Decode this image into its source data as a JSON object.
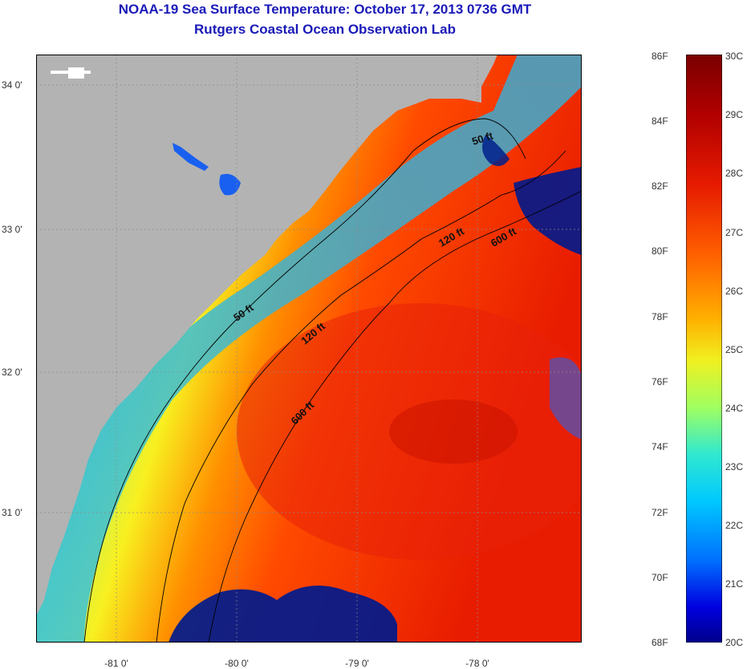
{
  "header": {
    "title": "NOAA-19 Sea Surface Temperature:  October 17, 2013 0736 GMT",
    "subtitle": "Rutgers Coastal Ocean Observation Lab"
  },
  "map": {
    "lat_labels": [
      "34 0'",
      "33 0'",
      "32 0'",
      "31 0'"
    ],
    "lon_labels": [
      "-81 0'",
      "-80 0'",
      "-79 0'",
      "-78 0'"
    ],
    "contours": [
      "50 ft",
      "50 ft",
      "120 ft",
      "120 ft",
      "600 ft",
      "600 ft"
    ]
  },
  "colorbar": {
    "fahrenheit": [
      "86F",
      "84F",
      "82F",
      "80F",
      "78F",
      "76F",
      "74F",
      "72F",
      "70F",
      "68F"
    ],
    "celsius": [
      "30C",
      "29C",
      "28C",
      "27C",
      "26C",
      "25C",
      "24C",
      "23C",
      "22C",
      "21C",
      "20C"
    ],
    "colors": [
      "#7a0000",
      "#b00000",
      "#e61a00",
      "#ff6000",
      "#ffb000",
      "#f0f020",
      "#a0ff60",
      "#30e8d0",
      "#00c8ff",
      "#0070ff",
      "#0000e0",
      "#00008a"
    ]
  },
  "colors": {
    "land": "#b3b3b3",
    "title": "#1a1ab8",
    "cloud": "#001a8c"
  }
}
